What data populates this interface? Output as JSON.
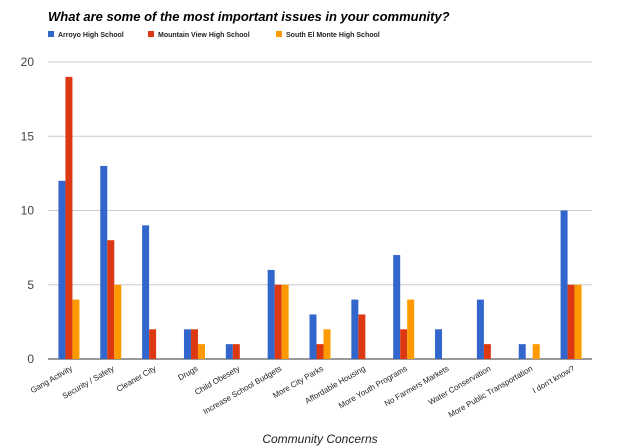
{
  "chart_data": {
    "type": "bar",
    "title": "What are some of the most important issues in your community?",
    "xlabel": "Community Concerns",
    "ylabel": "",
    "ylim": [
      0,
      20
    ],
    "yticks": [
      0,
      5,
      10,
      15,
      20
    ],
    "grid": true,
    "legend_position": "top-left",
    "categories": [
      "Gang Activity",
      "Security / Safety",
      "Cleaner City",
      "Drugs",
      "Child Obesety",
      "Increase School Budgets",
      "More City Parks",
      "Affordable Housing",
      "More Youth Programs",
      "No Farmers Markets",
      "Water Conservation",
      "More Public Transportation",
      "I don't know?"
    ],
    "series": [
      {
        "name": "Arroyo High School",
        "color": "#3366cc",
        "values": [
          12,
          13,
          9,
          2,
          1,
          6,
          3,
          4,
          7,
          2,
          4,
          1,
          10
        ]
      },
      {
        "name": "Mountain View High School",
        "color": "#dc3912",
        "values": [
          19,
          8,
          2,
          2,
          1,
          5,
          1,
          3,
          2,
          0,
          1,
          0,
          5
        ]
      },
      {
        "name": "South El Monte High School",
        "color": "#ff9900",
        "values": [
          4,
          5,
          0,
          1,
          0,
          5,
          2,
          0,
          4,
          0,
          0,
          1,
          5
        ]
      }
    ]
  }
}
